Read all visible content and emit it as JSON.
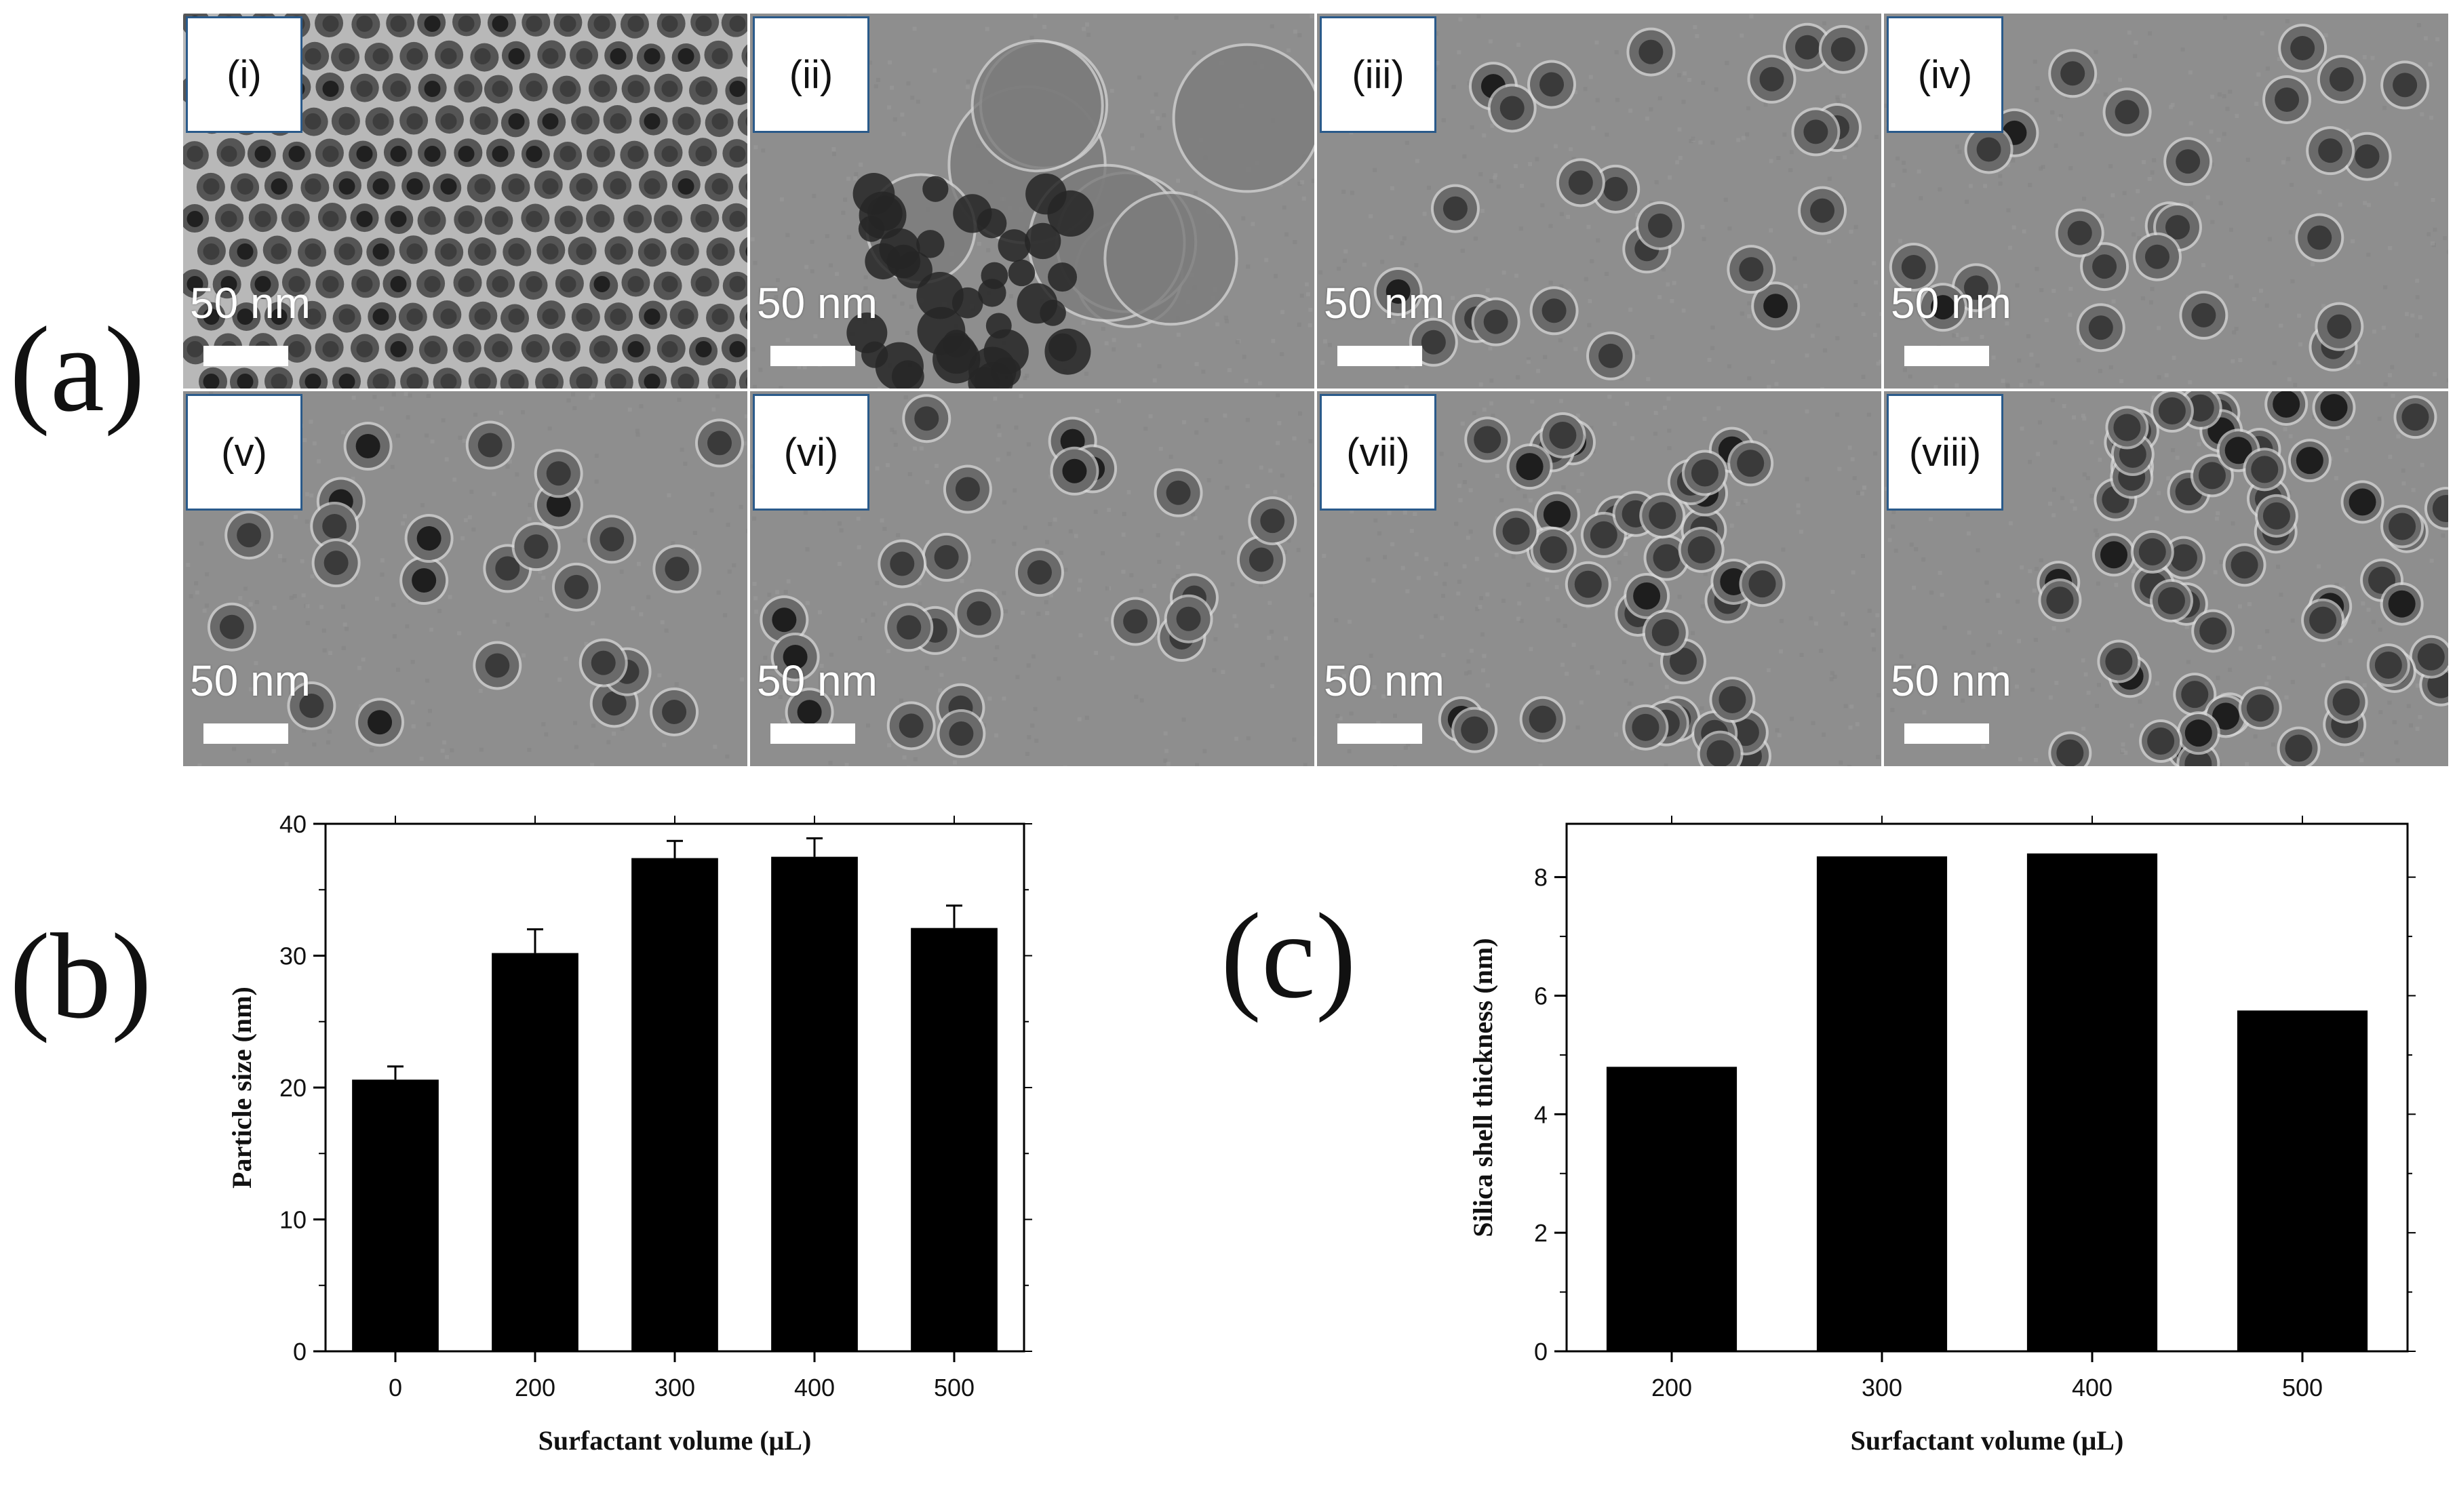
{
  "figure_labels": {
    "a": "(a)",
    "b": "(b)",
    "c": "(c)"
  },
  "tem_panels": [
    {
      "tag": "(i)",
      "scale_label": "50 nm",
      "morphology": "dense-monolayer"
    },
    {
      "tag": "(ii)",
      "scale_label": "50 nm",
      "morphology": "aggregated-large-shells"
    },
    {
      "tag": "(iii)",
      "scale_label": "50 nm",
      "morphology": "dispersed-core-shell"
    },
    {
      "tag": "(iv)",
      "scale_label": "50 nm",
      "morphology": "dispersed-core-shell"
    },
    {
      "tag": "(v)",
      "scale_label": "50 nm",
      "morphology": "dispersed-core-shell"
    },
    {
      "tag": "(vi)",
      "scale_label": "50 nm",
      "morphology": "dispersed-core-shell"
    },
    {
      "tag": "(vii)",
      "scale_label": "50 nm",
      "morphology": "aggregated-core-shell"
    },
    {
      "tag": "(viii)",
      "scale_label": "50 nm",
      "morphology": "aggregated-dense"
    }
  ],
  "chart_data": [
    {
      "id": "b",
      "type": "bar",
      "categories": [
        "0",
        "200",
        "300",
        "400",
        "500"
      ],
      "values": [
        20.6,
        30.2,
        37.4,
        37.5,
        32.1
      ],
      "error": [
        1.0,
        1.8,
        1.3,
        1.4,
        1.7
      ],
      "xlabel": "Surfactant volume (μL)",
      "ylabel": "Particle size (nm)",
      "ylim": [
        0,
        40
      ],
      "yticks": [
        0,
        10,
        20,
        30,
        40
      ],
      "grid": false,
      "bar_color": "#000000"
    },
    {
      "id": "c",
      "type": "bar",
      "categories": [
        "200",
        "300",
        "400",
        "500"
      ],
      "values": [
        4.8,
        8.35,
        8.4,
        5.75
      ],
      "xlabel": "Surfactant volume (μL)",
      "ylabel": "Silica shell thickness (nm)",
      "ylim": [
        0,
        8.9
      ],
      "yticks": [
        0,
        2,
        4,
        6,
        8
      ],
      "grid": false,
      "bar_color": "#000000"
    }
  ]
}
